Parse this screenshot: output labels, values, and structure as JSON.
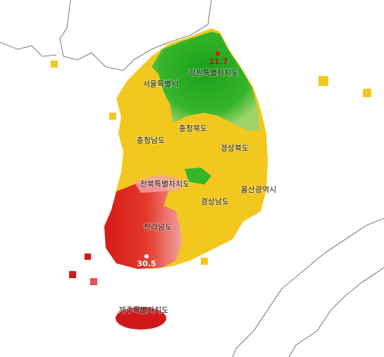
{
  "regions": [
    {
      "label": "강원특별자치도"
    },
    {
      "label": "서울특별시"
    },
    {
      "label": "충청북도"
    },
    {
      "label": "충청남도"
    },
    {
      "label": "경상북도"
    },
    {
      "label": "전북특별자치도"
    },
    {
      "label": "울산광역시"
    },
    {
      "label": "경상남도"
    },
    {
      "label": "전라남도"
    },
    {
      "label": "제주특별자치도"
    }
  ],
  "markers": [
    {
      "value": 11.7
    },
    {
      "value": 30.5
    }
  ]
}
